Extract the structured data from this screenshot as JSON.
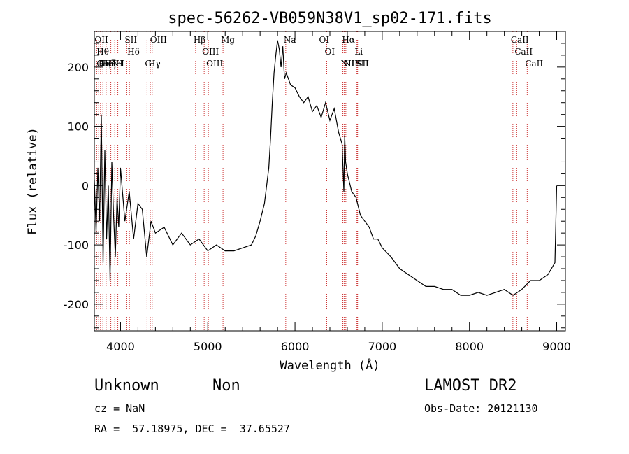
{
  "chart_data": {
    "type": "line",
    "title": "spec-56262-VB059N38V1_sp02-171.fits",
    "xlabel": "Wavelength (Å)",
    "ylabel": "Flux (relative)",
    "xlim": [
      3700,
      9100
    ],
    "ylim": [
      -245,
      260
    ],
    "xticks": [
      4000,
      5000,
      6000,
      7000,
      8000,
      9000
    ],
    "yticks": [
      -200,
      -100,
      0,
      100,
      200
    ],
    "x_minor_step": 200,
    "y_minor_step": 20,
    "grid": false,
    "line_color": "#000000",
    "marker_color": "#cc3333",
    "series": [
      {
        "x": [
          3700,
          3720,
          3740,
          3760,
          3780,
          3800,
          3820,
          3840,
          3860,
          3880,
          3900,
          3920,
          3940,
          3960,
          3980,
          4000,
          4050,
          4100,
          4150,
          4200,
          4250,
          4300,
          4350,
          4400,
          4500,
          4600,
          4700,
          4800,
          4900,
          5000,
          5100,
          5200,
          5300,
          5400,
          5500,
          5550,
          5600,
          5650,
          5700,
          5720,
          5740,
          5760,
          5780,
          5800,
          5820,
          5840,
          5860,
          5880,
          5900,
          5950,
          6000,
          6050,
          6100,
          6150,
          6200,
          6250,
          6300,
          6350,
          6400,
          6450,
          6500,
          6540,
          6560,
          6570,
          6580,
          6600,
          6650,
          6700,
          6750,
          6800,
          6850,
          6900,
          6950,
          7000,
          7100,
          7200,
          7300,
          7400,
          7500,
          7600,
          7700,
          7800,
          7900,
          8000,
          8100,
          8200,
          8300,
          8400,
          8500,
          8600,
          8700,
          8800,
          8900,
          8980,
          9000
        ],
        "y": [
          10,
          -80,
          30,
          -60,
          120,
          -130,
          60,
          -90,
          0,
          -160,
          40,
          -50,
          -120,
          -20,
          -70,
          30,
          -60,
          -10,
          -90,
          -30,
          -40,
          -120,
          -60,
          -80,
          -70,
          -100,
          -80,
          -100,
          -90,
          -110,
          -100,
          -110,
          -110,
          -105,
          -100,
          -85,
          -60,
          -30,
          30,
          80,
          140,
          190,
          220,
          245,
          230,
          200,
          235,
          180,
          190,
          170,
          165,
          150,
          140,
          150,
          125,
          135,
          115,
          140,
          110,
          130,
          90,
          70,
          -10,
          85,
          40,
          20,
          -10,
          -20,
          -50,
          -60,
          -70,
          -90,
          -90,
          -105,
          -120,
          -140,
          -150,
          -160,
          -170,
          -170,
          -175,
          -175,
          -185,
          -185,
          -180,
          -185,
          -180,
          -175,
          -185,
          -175,
          -160,
          -160,
          -150,
          -130,
          0
        ]
      }
    ],
    "lines": [
      {
        "x": 3727,
        "labels": [
          "OII"
        ]
      },
      {
        "x": 3750,
        "labels": [
          "Hθ",
          "CaII"
        ]
      },
      {
        "x": 3771,
        "labels": [
          "Hη"
        ]
      },
      {
        "x": 3798,
        "labels": [
          "HeI"
        ]
      },
      {
        "x": 3835,
        "labels": [
          "Hζ"
        ]
      },
      {
        "x": 3889,
        "labels": [
          "HeI"
        ]
      },
      {
        "x": 3934,
        "labels": [
          "K"
        ]
      },
      {
        "x": 3969,
        "labels": [
          "H"
        ]
      },
      {
        "x": 4072,
        "labels": [
          "SII"
        ]
      },
      {
        "x": 4102,
        "labels": [
          "Hδ"
        ]
      },
      {
        "x": 4304,
        "labels": [
          "G"
        ]
      },
      {
        "x": 4341,
        "labels": [
          "Hγ"
        ]
      },
      {
        "x": 4363,
        "labels": [
          "OIII"
        ]
      },
      {
        "x": 4861,
        "labels": [
          "Hβ"
        ]
      },
      {
        "x": 4959,
        "labels": [
          "OIII"
        ]
      },
      {
        "x": 5007,
        "labels": [
          "OIII"
        ]
      },
      {
        "x": 5175,
        "labels": [
          "Mg"
        ]
      },
      {
        "x": 5894,
        "labels": [
          "Na"
        ]
      },
      {
        "x": 6300,
        "labels": [
          "OI"
        ]
      },
      {
        "x": 6364,
        "labels": [
          "OI"
        ]
      },
      {
        "x": 6548,
        "labels": [
          "NII"
        ]
      },
      {
        "x": 6563,
        "labels": [
          "Hα"
        ]
      },
      {
        "x": 6583,
        "labels": [
          "NII"
        ]
      },
      {
        "x": 6707,
        "labels": [
          "Li"
        ]
      },
      {
        "x": 6716,
        "labels": [
          "SII"
        ]
      },
      {
        "x": 6731,
        "labels": [
          "SII"
        ]
      },
      {
        "x": 8498,
        "labels": [
          "CaII"
        ]
      },
      {
        "x": 8542,
        "labels": [
          "CaII"
        ]
      },
      {
        "x": 8662,
        "labels": [
          "CaII"
        ]
      }
    ]
  },
  "footer": {
    "class_label": "Unknown",
    "subclass_label": "Non",
    "cz": "cz = NaN",
    "coords": "RA =  57.18975, DEC =  37.65527",
    "survey": "LAMOST DR2",
    "obs_date": "Obs-Date: 20121130"
  }
}
